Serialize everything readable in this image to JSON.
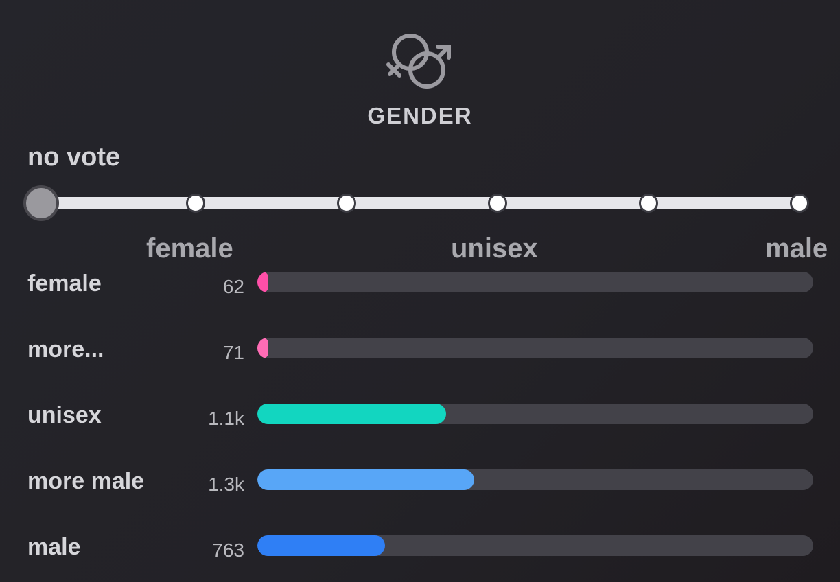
{
  "title": "GENDER",
  "icon": "gender-symbols-icon",
  "vote": {
    "label": "no vote",
    "stops": 6,
    "selected_index": 0
  },
  "scale_labels": [
    "female",
    "unisex",
    "male"
  ],
  "rows": [
    {
      "label": "female",
      "count": "62",
      "fraction": 0.02,
      "color": "#ff4fa8"
    },
    {
      "label": "more...",
      "count": "71",
      "fraction": 0.02,
      "color": "#ff6cb5"
    },
    {
      "label": "unisex",
      "count": "1.1k",
      "fraction": 0.34,
      "color": "#12d6c0"
    },
    {
      "label": "more male",
      "count": "1.3k",
      "fraction": 0.39,
      "color": "#58a6f7"
    },
    {
      "label": "male",
      "count": "763",
      "fraction": 0.23,
      "color": "#2f7ff5"
    }
  ]
}
